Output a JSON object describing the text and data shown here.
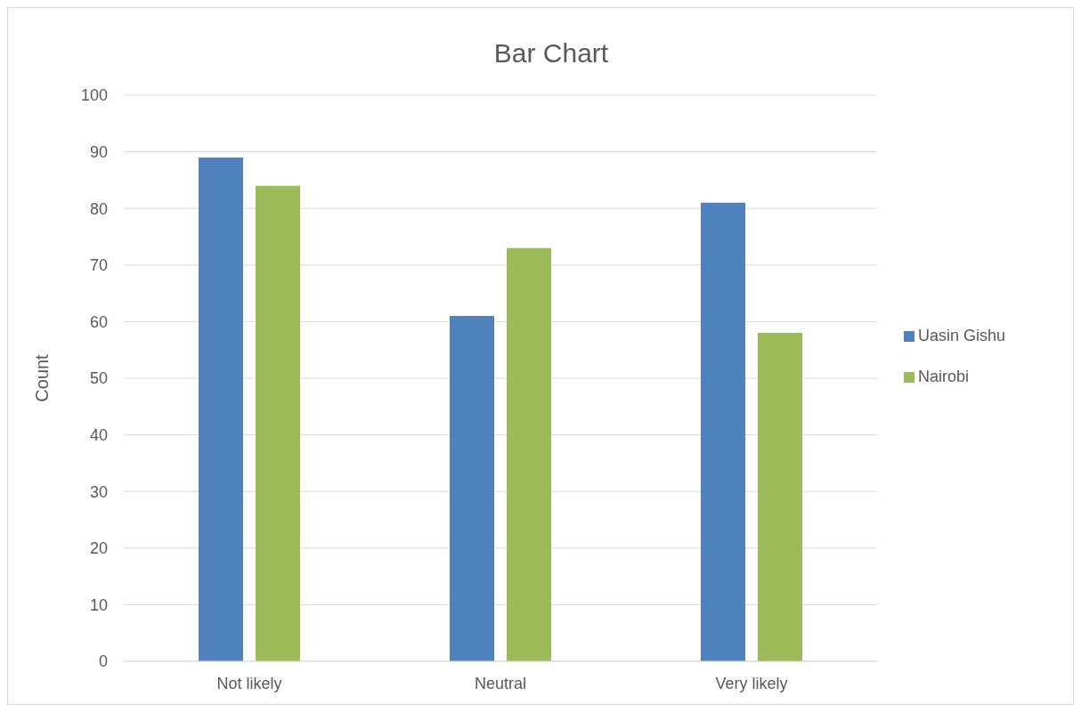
{
  "chart_data": {
    "type": "bar",
    "title": "Bar Chart",
    "ylabel": "Count",
    "categories": [
      "Not likely",
      "Neutral",
      "Very likely"
    ],
    "series": [
      {
        "name": "Uasin Gishu",
        "color": "#4f81bd",
        "values": [
          89,
          61,
          81
        ]
      },
      {
        "name": "Nairobi",
        "color": "#9bbb59",
        "values": [
          84,
          73,
          58
        ]
      }
    ],
    "ylim": [
      0,
      100
    ],
    "yticks": [
      0,
      10,
      20,
      30,
      40,
      50,
      60,
      70,
      80,
      90,
      100
    ],
    "grid": "y",
    "legend": "right"
  }
}
